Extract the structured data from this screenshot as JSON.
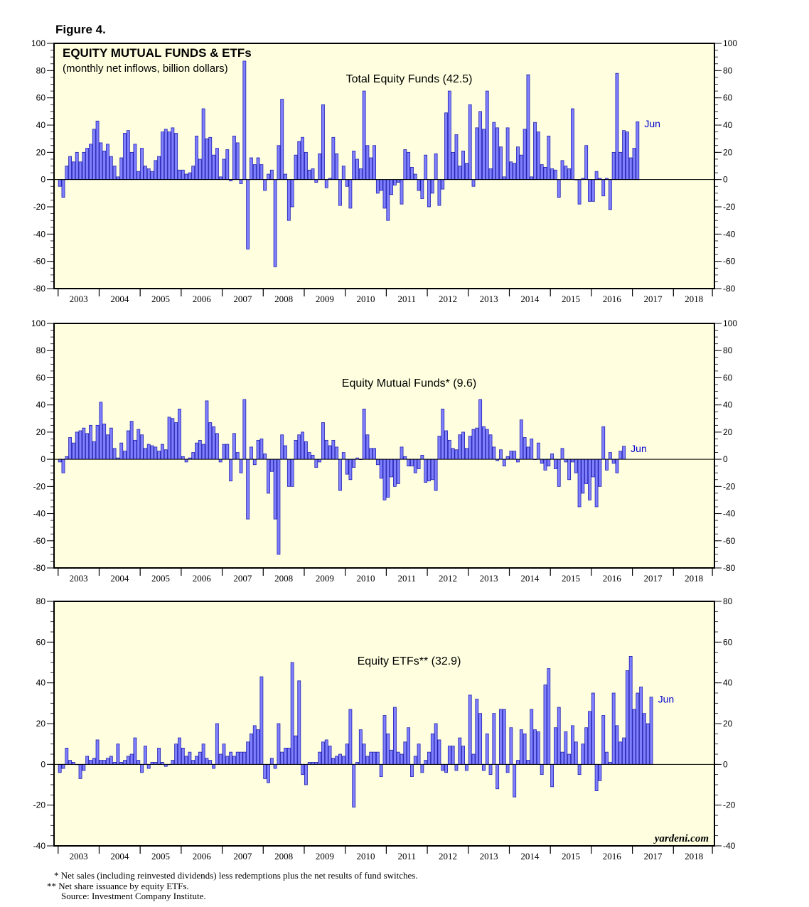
{
  "figure_label": "Figure 4.",
  "main_title": "EQUITY MUTUAL FUNDS & ETFs",
  "subtitle": "(monthly net inflows, billion dollars)",
  "source_brand": "yardeni.com",
  "footnotes": {
    "one": "* Net sales (including reinvested dividends) less redemptions plus the net results of fund switches.",
    "two": "** Net share issuance by equity ETFs.",
    "three": "Source: Investment Company Institute."
  },
  "colors": {
    "plot_bg": "#ffffe0",
    "bar_fill": "#8080ff",
    "bar_stroke": "#2020b0",
    "axis": "#000000",
    "jun_label": "#0000cc"
  },
  "chart_data": [
    {
      "type": "bar",
      "title": "Total Equity Funds (42.5)",
      "end_label": "Jun",
      "ylim": [
        -80,
        100
      ],
      "yticks": [
        100,
        80,
        60,
        40,
        20,
        0,
        -20,
        -40,
        -60,
        -80
      ],
      "xlim": [
        2002.9,
        2019.0
      ],
      "year_ticks": [
        "2003",
        "2004",
        "2005",
        "2006",
        "2007",
        "2008",
        "2009",
        "2010",
        "2011",
        "2012",
        "2013",
        "2014",
        "2015",
        "2016",
        "2017",
        "2018"
      ],
      "start": "2003-01",
      "values": [
        -5,
        -13,
        10,
        17,
        13,
        20,
        13,
        20,
        23,
        26,
        37,
        43,
        27,
        21,
        26,
        17,
        10,
        2,
        16,
        34,
        36,
        20,
        26,
        6,
        23,
        10,
        8,
        6,
        14,
        17,
        35,
        37,
        35,
        38,
        34,
        7,
        7,
        4,
        5,
        10,
        32,
        15,
        52,
        30,
        31,
        18,
        23,
        2,
        15,
        22,
        -1,
        32,
        27,
        -3,
        87,
        -51,
        16,
        11,
        16,
        11,
        -8,
        4,
        7,
        -64,
        25,
        59,
        4,
        -30,
        -20,
        18,
        28,
        31,
        20,
        7,
        8,
        -2,
        19,
        55,
        -6,
        1,
        31,
        19,
        -19,
        10,
        -5,
        -21,
        21,
        15,
        8,
        65,
        25,
        16,
        25,
        -10,
        -8,
        -21,
        -30,
        -11,
        -4,
        -2,
        -18,
        22,
        20,
        9,
        4,
        -8,
        -14,
        18,
        -20,
        -10,
        19,
        -19,
        -7,
        49,
        65,
        20,
        33,
        10,
        21,
        12,
        55,
        -5,
        38,
        50,
        37,
        65,
        8,
        42,
        38,
        24,
        2,
        38,
        13,
        12,
        24,
        18,
        37,
        77,
        2,
        42,
        35,
        11,
        9,
        32,
        8,
        7,
        -13,
        14,
        10,
        8,
        52,
        0,
        -18,
        1,
        25,
        -16,
        -16,
        6,
        1,
        -12,
        1,
        -22,
        20,
        78,
        20,
        36,
        35,
        16,
        23,
        42.5
      ]
    },
    {
      "type": "bar",
      "title": "Equity Mutual Funds* (9.6)",
      "end_label": "Jun",
      "ylim": [
        -80,
        100
      ],
      "yticks": [
        100,
        80,
        60,
        40,
        20,
        0,
        -20,
        -40,
        -60,
        -80
      ],
      "xlim": [
        2002.9,
        2019.0
      ],
      "year_ticks": [
        "2003",
        "2004",
        "2005",
        "2006",
        "2007",
        "2008",
        "2009",
        "2010",
        "2011",
        "2012",
        "2013",
        "2014",
        "2015",
        "2016",
        "2017",
        "2018"
      ],
      "start": "2003-01",
      "values": [
        -2,
        -10,
        2,
        16,
        12,
        20,
        21,
        23,
        19,
        25,
        13,
        25,
        42,
        26,
        18,
        23,
        8,
        1,
        12,
        6,
        21,
        28,
        14,
        22,
        18,
        8,
        11,
        10,
        9,
        6,
        11,
        7,
        31,
        30,
        27,
        37,
        2,
        -2,
        1,
        5,
        12,
        14,
        11,
        43,
        27,
        24,
        19,
        -2,
        11,
        11,
        -16,
        19,
        5,
        -10,
        44,
        -44,
        9,
        -4,
        14,
        15,
        4,
        -25,
        -9,
        -44,
        -70,
        18,
        10,
        -20,
        -20,
        14,
        18,
        20,
        13,
        5,
        3,
        -6,
        -2,
        27,
        14,
        10,
        14,
        9,
        -23,
        5,
        -11,
        -15,
        -6,
        1,
        0,
        37,
        18,
        8,
        8,
        -4,
        -14,
        -30,
        -28,
        -13,
        -20,
        -18,
        9,
        2,
        -5,
        -5,
        -10,
        -7,
        3,
        -17,
        -16,
        -15,
        -23,
        17,
        37,
        21,
        14,
        8,
        7,
        18,
        20,
        8,
        17,
        22,
        23,
        44,
        24,
        22,
        18,
        9,
        -1,
        7,
        -5,
        2,
        6,
        6,
        -2,
        29,
        16,
        9,
        15,
        0,
        12,
        -3,
        -8,
        -5,
        4,
        -7,
        -20,
        8,
        -2,
        -15,
        -2,
        -10,
        -35,
        -25,
        -18,
        -30,
        -13,
        -35,
        -20,
        24,
        -8,
        5,
        -3,
        -10,
        6,
        9.6
      ]
    },
    {
      "type": "bar",
      "title": "Equity ETFs** (32.9)",
      "end_label": "Jun",
      "ylim": [
        -40,
        80
      ],
      "yticks": [
        80,
        60,
        40,
        20,
        0,
        -20,
        -40
      ],
      "xlim": [
        2002.9,
        2019.0
      ],
      "year_ticks": [
        "2003",
        "2004",
        "2005",
        "2006",
        "2007",
        "2008",
        "2009",
        "2010",
        "2011",
        "2012",
        "2013",
        "2014",
        "2015",
        "2016",
        "2017",
        "2018"
      ],
      "start": "2003-01",
      "values": [
        -4,
        -2,
        8,
        2,
        1,
        0,
        -7,
        -3,
        4,
        2,
        3,
        12,
        2,
        2,
        3,
        4,
        1,
        10,
        1,
        2,
        4,
        5,
        13,
        2,
        -4,
        9,
        -2,
        1,
        1,
        8,
        1,
        -1,
        0,
        2,
        10,
        13,
        8,
        4,
        6,
        2,
        4,
        6,
        10,
        3,
        2,
        -2,
        20,
        5,
        10,
        4,
        6,
        4,
        6,
        6,
        6,
        11,
        15,
        19,
        17,
        43,
        -7,
        -9,
        3,
        -2,
        20,
        6,
        8,
        8,
        50,
        14,
        41,
        -5,
        -10,
        1,
        1,
        1,
        6,
        11,
        12,
        9,
        3,
        4,
        5,
        4,
        10,
        27,
        -21,
        1,
        17,
        10,
        4,
        6,
        6,
        6,
        -6,
        24,
        15,
        7,
        28,
        6,
        5,
        11,
        18,
        -6,
        4,
        10,
        -4,
        2,
        6,
        15,
        20,
        12,
        -3,
        -4,
        9,
        9,
        -3,
        13,
        9,
        -3,
        34,
        5,
        32,
        25,
        -3,
        15,
        -5,
        25,
        -12,
        27,
        27,
        -4,
        18,
        -16,
        2,
        17,
        15,
        2,
        27,
        17,
        16,
        -5,
        39,
        47,
        -11,
        18,
        28,
        6,
        16,
        5,
        19,
        11,
        -5,
        10,
        18,
        26,
        35,
        -13,
        -8,
        24,
        6,
        1,
        35,
        19,
        11,
        13,
        46,
        53,
        27,
        35,
        38,
        25,
        20,
        33
      ]
    }
  ]
}
